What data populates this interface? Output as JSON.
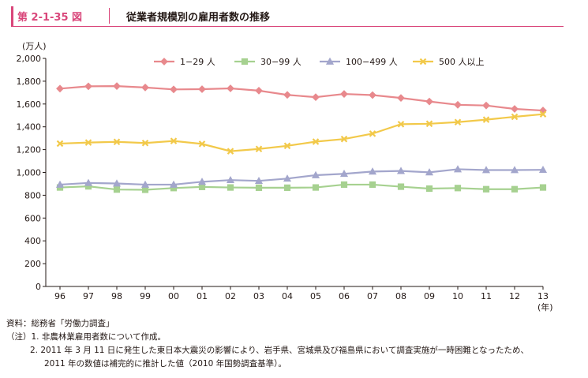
{
  "figure": {
    "number": "第 2-1-35 図",
    "title": "従業者規模別の雇用者数の推移"
  },
  "chart_data": {
    "type": "line",
    "unit_label": "(万人)",
    "x_unit_label": "(年)",
    "categories": [
      "96",
      "97",
      "98",
      "99",
      "00",
      "01",
      "02",
      "03",
      "04",
      "05",
      "06",
      "07",
      "08",
      "09",
      "10",
      "11",
      "12",
      "13"
    ],
    "ylim": [
      0,
      2000
    ],
    "yticks": [
      "0",
      "200",
      "400",
      "600",
      "800",
      "1,000",
      "1,200",
      "1,400",
      "1,600",
      "1,800",
      "2,000"
    ],
    "grid": false,
    "legend_position": "top",
    "series": [
      {
        "name": "1−29 人",
        "color": "#e8898d",
        "marker": "diamond",
        "values": [
          1735,
          1755,
          1757,
          1745,
          1728,
          1730,
          1737,
          1717,
          1680,
          1660,
          1688,
          1678,
          1653,
          1622,
          1593,
          1587,
          1557,
          1543
        ]
      },
      {
        "name": "30−99 人",
        "color": "#a6d190",
        "marker": "square",
        "values": [
          868,
          878,
          850,
          848,
          863,
          873,
          868,
          866,
          866,
          868,
          893,
          893,
          875,
          858,
          863,
          853,
          853,
          868
        ]
      },
      {
        "name": "100−499 人",
        "color": "#a3a6cc",
        "marker": "triangle",
        "values": [
          893,
          908,
          903,
          893,
          893,
          918,
          933,
          926,
          946,
          976,
          988,
          1008,
          1013,
          1001,
          1028,
          1021,
          1021,
          1023
        ]
      },
      {
        "name": "500 人以上",
        "color": "#f2c94a",
        "marker": "x",
        "values": [
          1253,
          1262,
          1268,
          1258,
          1276,
          1250,
          1186,
          1206,
          1233,
          1270,
          1293,
          1340,
          1423,
          1427,
          1441,
          1463,
          1488,
          1511
        ]
      }
    ]
  },
  "notes": {
    "source": "資料：総務省「労働力調査」",
    "note1": "（注）1.  非農林業雇用者数について作成。",
    "note2": "2.  2011 年 3 月 11 日に発生した東日本大震災の影響により、岩手県、宮城県及び福島県において調査実施が一時困難となったため、",
    "note2b": "2011 年の数値は補完的に推計した値（2010 年国勢調査基準）。"
  }
}
